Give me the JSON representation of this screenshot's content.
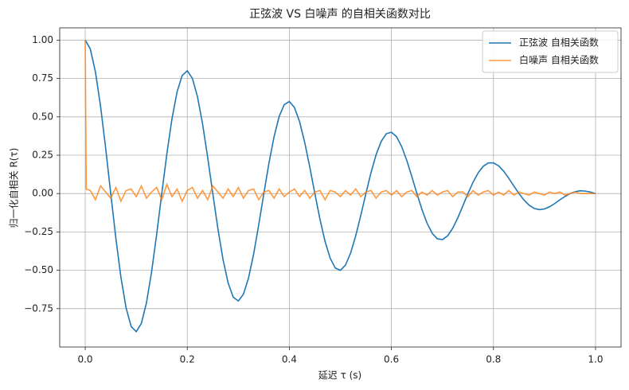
{
  "chart_data": {
    "type": "line",
    "title": "正弦波 VS 白噪声 的自相关函数对比",
    "xlabel": "延迟 τ (s)",
    "ylabel": "归一化自相关 R(τ)",
    "x": [
      0,
      0.01,
      0.02,
      0.03,
      0.04,
      0.05,
      0.06,
      0.07,
      0.08,
      0.09,
      0.1,
      0.11,
      0.12,
      0.13,
      0.14,
      0.15,
      0.16,
      0.17,
      0.18,
      0.19,
      0.2,
      0.21,
      0.22,
      0.23,
      0.24,
      0.25,
      0.26,
      0.27,
      0.28,
      0.29,
      0.3,
      0.31,
      0.32,
      0.33,
      0.34,
      0.35,
      0.36,
      0.37,
      0.38,
      0.39,
      0.4,
      0.41,
      0.42,
      0.43,
      0.44,
      0.45,
      0.46,
      0.47,
      0.48,
      0.49,
      0.5,
      0.51,
      0.52,
      0.53,
      0.54,
      0.55,
      0.56,
      0.57,
      0.58,
      0.59,
      0.6,
      0.61,
      0.62,
      0.63,
      0.64,
      0.65,
      0.66,
      0.67,
      0.68,
      0.69,
      0.7,
      0.71,
      0.72,
      0.73,
      0.74,
      0.75,
      0.76,
      0.77,
      0.78,
      0.79,
      0.8,
      0.81,
      0.82,
      0.83,
      0.84,
      0.85,
      0.86,
      0.87,
      0.88,
      0.89,
      0.9,
      0.91,
      0.92,
      0.93,
      0.94,
      0.95,
      0.96,
      0.97,
      0.98,
      0.99,
      1
    ],
    "series": [
      {
        "name": "正弦波 自相关函数",
        "color": "#1f77b4",
        "values": [
          1,
          0.942,
          0.793,
          0.57,
          0.297,
          0,
          -0.29,
          -0.547,
          -0.744,
          -0.866,
          -0.9,
          -0.846,
          -0.712,
          -0.511,
          -0.266,
          0,
          0.26,
          0.488,
          0.663,
          0.77,
          0.8,
          0.751,
          0.631,
          0.453,
          0.235,
          0,
          -0.229,
          -0.429,
          -0.582,
          -0.675,
          -0.7,
          -0.656,
          -0.55,
          -0.394,
          -0.204,
          0,
          0.198,
          0.37,
          0.502,
          0.58,
          0.6,
          0.561,
          0.469,
          0.335,
          0.173,
          0,
          -0.167,
          -0.312,
          -0.421,
          -0.485,
          -0.5,
          -0.466,
          -0.388,
          -0.276,
          -0.142,
          0,
          0.136,
          0.253,
          0.34,
          0.39,
          0.4,
          0.371,
          0.307,
          0.217,
          0.111,
          0,
          -0.105,
          -0.194,
          -0.259,
          -0.295,
          -0.3,
          -0.276,
          -0.227,
          -0.159,
          -0.08,
          0,
          0.074,
          0.135,
          0.178,
          0.2,
          0.2,
          0.181,
          0.146,
          0.1,
          0.049,
          0,
          -0.043,
          -0.076,
          -0.097,
          -0.105,
          -0.1,
          -0.086,
          -0.065,
          -0.041,
          -0.019,
          0,
          0.012,
          0.018,
          0.016,
          0.01,
          0
        ]
      },
      {
        "name": "白噪声 自相关函数",
        "color": "#ff7f0e",
        "alpha": 0.8,
        "x": [
          0,
          0.002,
          0.01,
          0.02,
          0.03,
          0.04,
          0.05,
          0.06,
          0.07,
          0.08,
          0.09,
          0.1,
          0.11,
          0.12,
          0.13,
          0.14,
          0.15,
          0.16,
          0.17,
          0.18,
          0.19,
          0.2,
          0.21,
          0.22,
          0.23,
          0.24,
          0.25,
          0.26,
          0.27,
          0.28,
          0.29,
          0.3,
          0.31,
          0.32,
          0.33,
          0.34,
          0.35,
          0.36,
          0.37,
          0.38,
          0.39,
          0.4,
          0.41,
          0.42,
          0.43,
          0.44,
          0.45,
          0.46,
          0.47,
          0.48,
          0.49,
          0.5,
          0.51,
          0.52,
          0.53,
          0.54,
          0.55,
          0.56,
          0.57,
          0.58,
          0.59,
          0.6,
          0.61,
          0.62,
          0.63,
          0.64,
          0.65,
          0.66,
          0.67,
          0.68,
          0.69,
          0.7,
          0.71,
          0.72,
          0.73,
          0.74,
          0.75,
          0.76,
          0.77,
          0.78,
          0.79,
          0.8,
          0.81,
          0.82,
          0.83,
          0.84,
          0.85,
          0.86,
          0.87,
          0.88,
          0.89,
          0.9,
          0.91,
          0.92,
          0.93,
          0.94,
          0.95,
          0.96,
          0.97,
          0.98,
          0.99,
          1
        ],
        "values": [
          1,
          0.03,
          0.02,
          -0.04,
          0.05,
          0.01,
          -0.03,
          0.04,
          -0.05,
          0.02,
          0.03,
          -0.02,
          0.05,
          -0.03,
          0.01,
          0.04,
          -0.04,
          0.06,
          -0.02,
          0.03,
          -0.05,
          0.02,
          0.04,
          -0.03,
          0.02,
          -0.04,
          0.05,
          0.01,
          -0.03,
          0.03,
          -0.02,
          0.04,
          -0.03,
          0.02,
          0.03,
          -0.04,
          0.01,
          0.02,
          -0.03,
          0.03,
          -0.02,
          0.01,
          0.03,
          -0.02,
          0.02,
          -0.03,
          0.01,
          0.02,
          -0.04,
          0.02,
          0.01,
          -0.02,
          0.02,
          -0.01,
          0.03,
          -0.02,
          0.01,
          0.02,
          -0.03,
          0.01,
          0.02,
          -0.01,
          0.02,
          -0.02,
          0.01,
          0.02,
          -0.02,
          0.01,
          -0.01,
          0.02,
          -0.01,
          0.01,
          0.02,
          -0.02,
          0.01,
          0.01,
          -0.02,
          0.02,
          -0.01,
          0.01,
          0.02,
          -0.01,
          0.01,
          -0.01,
          0.02,
          -0.01,
          0.01,
          0,
          -0.01,
          0.01,
          0,
          -0.01,
          0.01,
          0,
          0.01,
          -0.01,
          0,
          0.01,
          0,
          0,
          0,
          0
        ]
      }
    ],
    "xlim": [
      -0.05,
      1.05
    ],
    "ylim": [
      -1.0,
      1.08
    ],
    "xticks": [
      {
        "value": 0,
        "label": "0.0"
      },
      0.2,
      0.4,
      0.6,
      0.8,
      {
        "value": 1,
        "label": "1.0"
      }
    ],
    "yticks": [
      {
        "value": -0.75,
        "label": "−0.75"
      },
      {
        "value": -0.5,
        "label": "−0.50"
      },
      {
        "value": -0.25,
        "label": "−0.25"
      },
      {
        "value": 0,
        "label": "0.00"
      },
      {
        "value": 0.25,
        "label": "0.25"
      },
      {
        "value": 0.5,
        "label": "0.50"
      },
      {
        "value": 0.75,
        "label": "0.75"
      },
      {
        "value": 1,
        "label": "1.00"
      }
    ],
    "grid": true,
    "legend": "upper right"
  }
}
